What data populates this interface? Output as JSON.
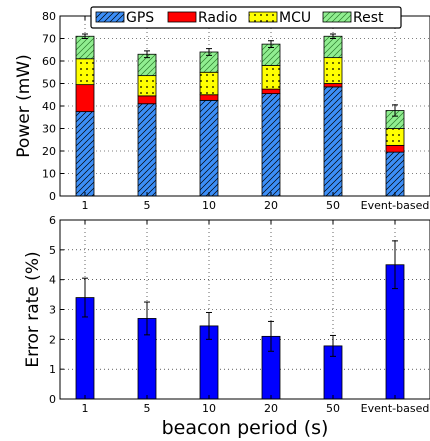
{
  "chart_data": [
    {
      "type": "bar",
      "stacked": true,
      "categories": [
        "1",
        "5",
        "10",
        "20",
        "50",
        "Event-based"
      ],
      "ylabel": "Power (mW)",
      "ylim": [
        0,
        80
      ],
      "yticks": [
        0,
        10,
        20,
        30,
        40,
        50,
        60,
        70,
        80
      ],
      "grid": true,
      "legend": "top",
      "series": [
        {
          "name": "GPS",
          "values": [
            37.5,
            41,
            42.5,
            45.5,
            48.5,
            19.5
          ],
          "color": "#3c8ef7",
          "hatch": "diagonal"
        },
        {
          "name": "Radio",
          "values": [
            12,
            3.5,
            2.5,
            2,
            1.5,
            3
          ],
          "color": "#ff0000",
          "hatch": "none"
        },
        {
          "name": "MCU",
          "values": [
            11.5,
            9,
            10,
            10.5,
            11.5,
            7.5
          ],
          "color": "#ffff00",
          "hatch": "dots"
        },
        {
          "name": "Rest",
          "values": [
            10,
            9.5,
            9,
            9.5,
            9.5,
            8
          ],
          "color": "#90ee90",
          "hatch": "diagonal"
        }
      ],
      "error": [
        1,
        1.5,
        1.5,
        1.5,
        1,
        2.5
      ]
    },
    {
      "type": "bar",
      "categories": [
        "1",
        "5",
        "10",
        "20",
        "50",
        "Event-based"
      ],
      "xlabel": "beacon period (s)",
      "ylabel": "Error rate (%)",
      "ylim": [
        0,
        6
      ],
      "yticks": [
        0,
        1,
        2,
        3,
        4,
        5,
        6
      ],
      "grid": true,
      "series": [
        {
          "values": [
            3.4,
            2.7,
            2.45,
            2.1,
            1.78,
            4.5
          ],
          "color": "#0000ff"
        }
      ],
      "error": [
        0.65,
        0.55,
        0.45,
        0.5,
        0.35,
        0.8
      ]
    }
  ]
}
